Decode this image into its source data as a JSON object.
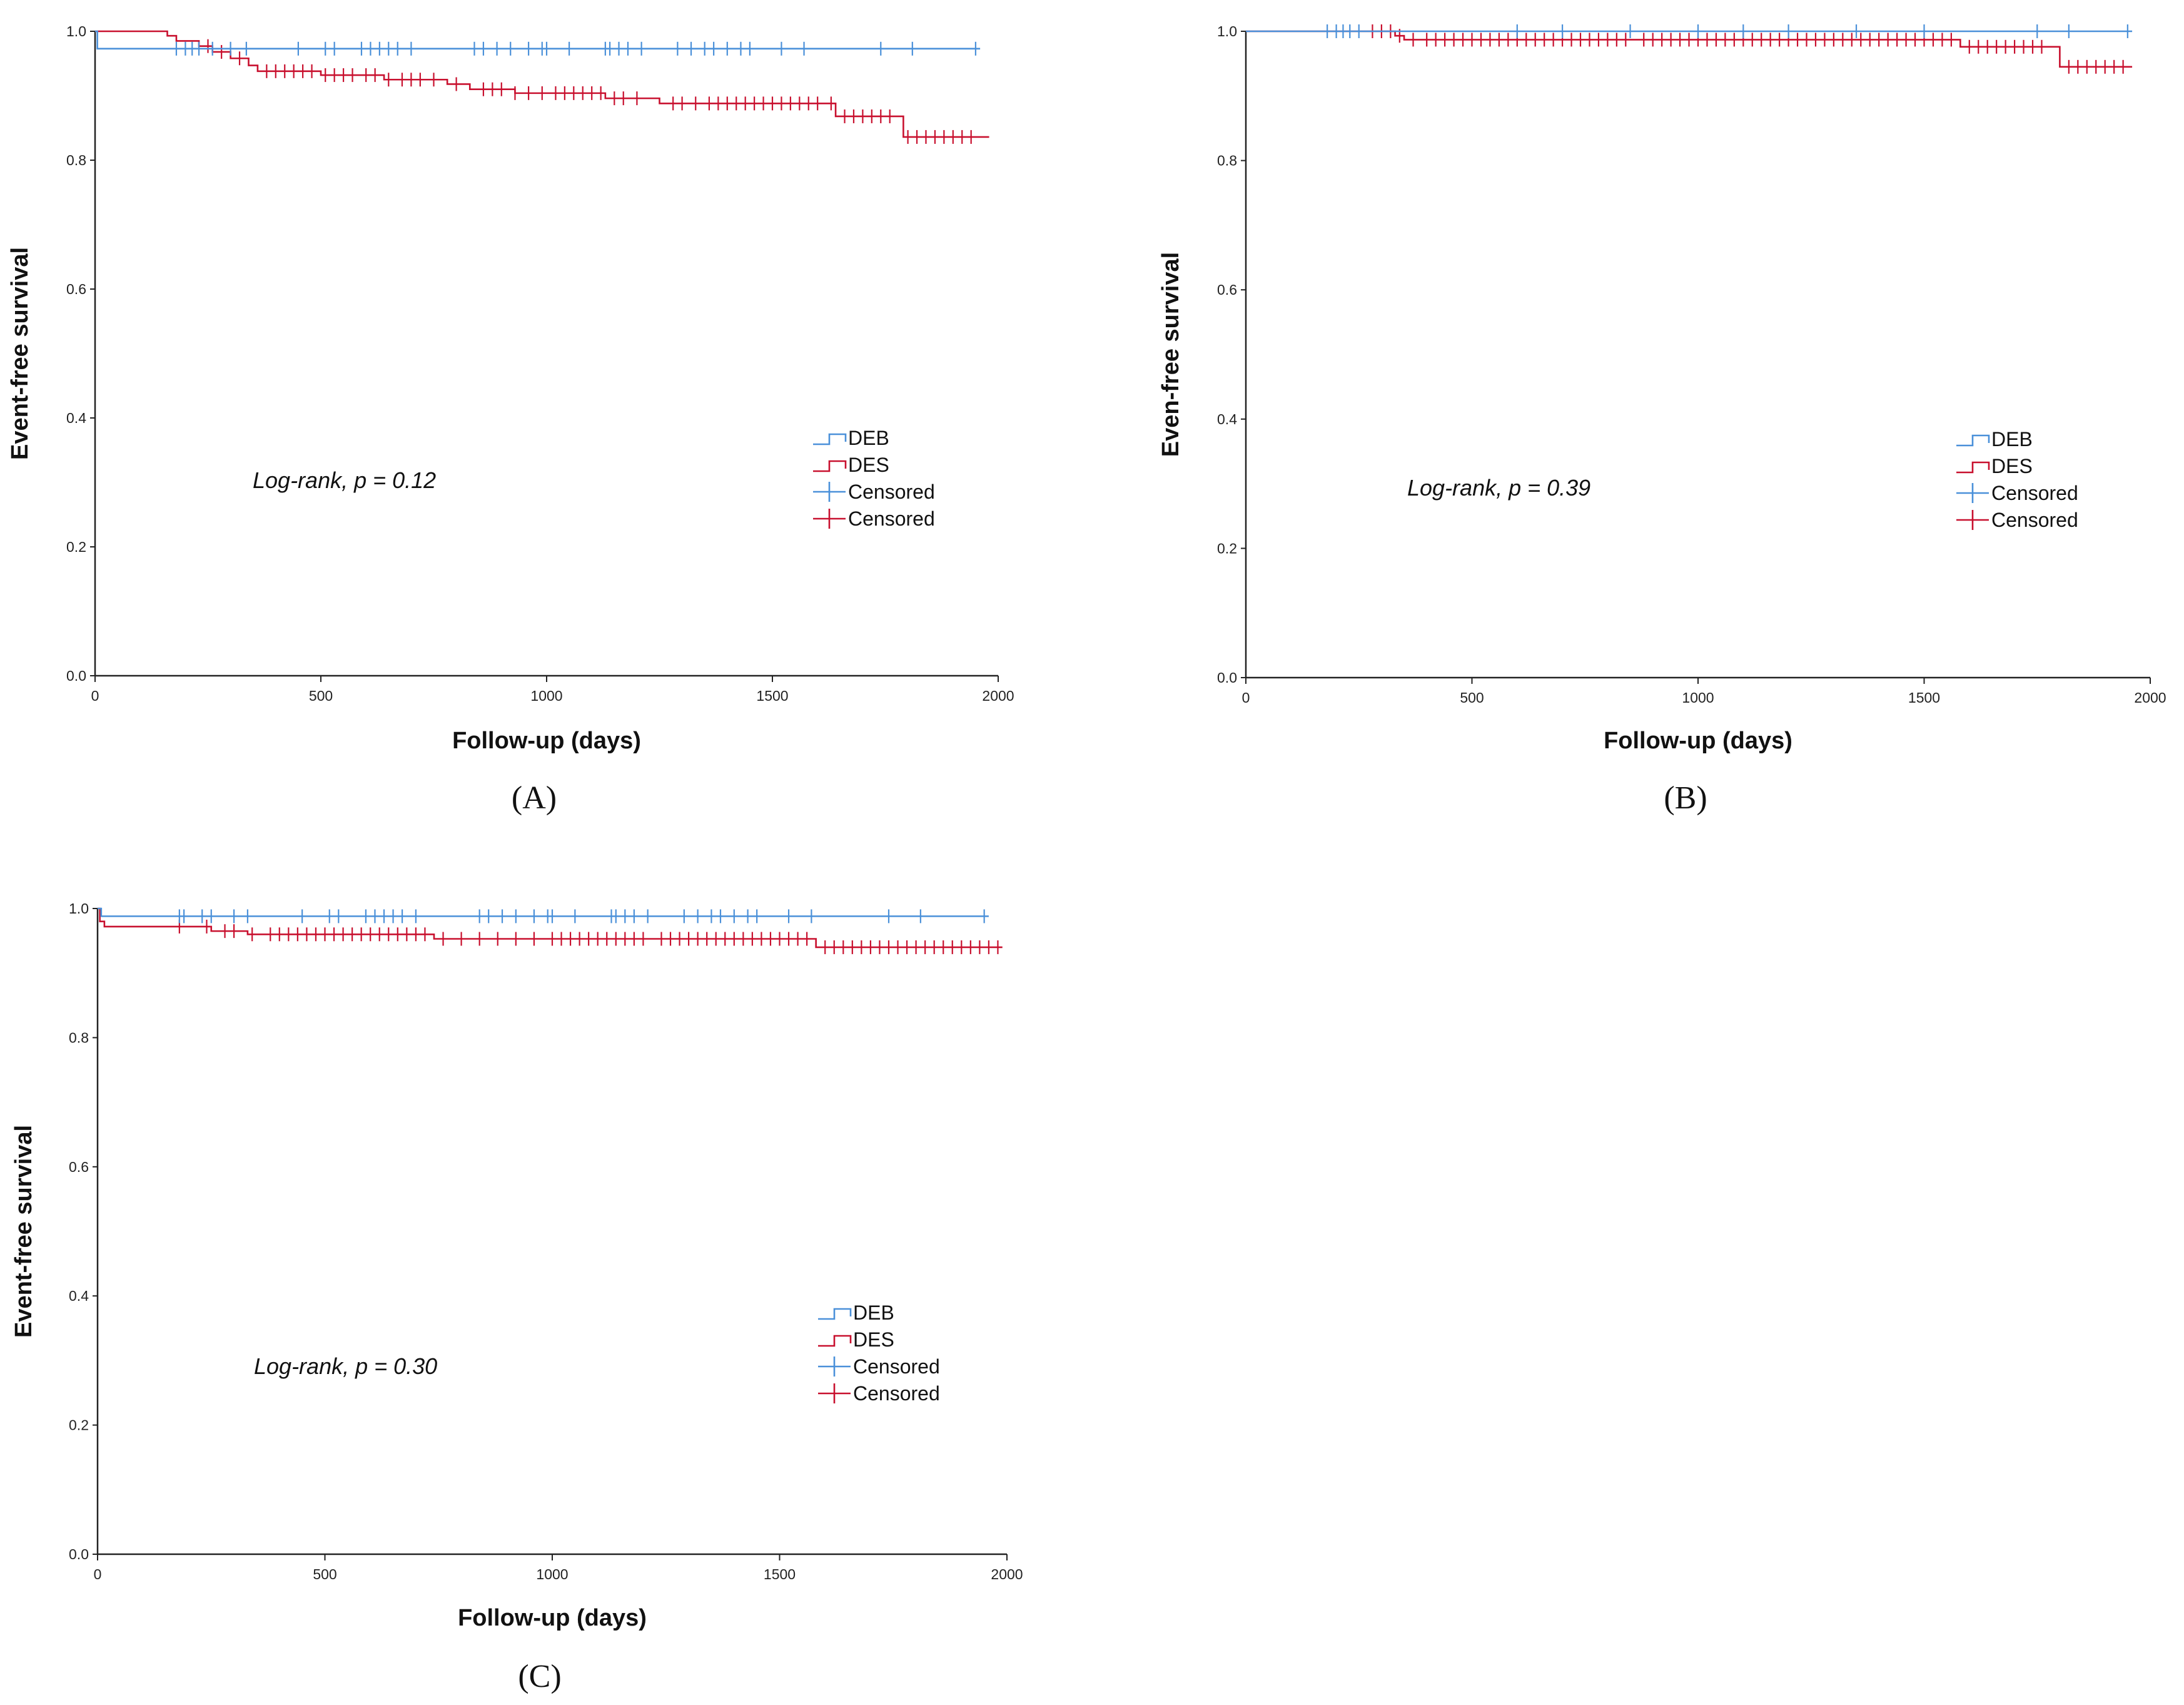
{
  "colors": {
    "deb": "#4a90d9",
    "des": "#c8102e",
    "axis": "#222222"
  },
  "chart_data": [
    {
      "type": "line",
      "panel_label": "(A)",
      "xlabel": "Follow-up (days)",
      "ylabel": "Event-free survival",
      "xlim": [
        0,
        2000
      ],
      "ylim": [
        0,
        1.0
      ],
      "xticks": [
        "0",
        "500",
        "1000",
        "1500",
        "2000"
      ],
      "yticks": [
        "0.0",
        "0.2",
        "0.4",
        "0.6",
        "0.8",
        "1.0"
      ],
      "annotation": "Log-rank, p = 0.12",
      "legend": [
        "DEB",
        "DES",
        "Censored",
        "Censored"
      ],
      "series": [
        {
          "name": "DEB",
          "steps": [
            [
              0,
              1.0
            ],
            [
              5,
              0.973
            ],
            [
              1960,
              0.973
            ]
          ],
          "censored": [
            180,
            200,
            215,
            230,
            260,
            300,
            335,
            450,
            510,
            530,
            590,
            610,
            630,
            650,
            670,
            700,
            840,
            860,
            890,
            920,
            960,
            990,
            1000,
            1050,
            1130,
            1140,
            1160,
            1180,
            1210,
            1290,
            1320,
            1350,
            1370,
            1400,
            1430,
            1450,
            1520,
            1570,
            1740,
            1810,
            1950
          ]
        },
        {
          "name": "DES",
          "steps": [
            [
              0,
              1.0
            ],
            [
              160,
              0.993
            ],
            [
              180,
              0.985
            ],
            [
              230,
              0.977
            ],
            [
              260,
              0.968
            ],
            [
              300,
              0.958
            ],
            [
              340,
              0.947
            ],
            [
              360,
              0.938
            ],
            [
              500,
              0.932
            ],
            [
              640,
              0.925
            ],
            [
              780,
              0.918
            ],
            [
              830,
              0.91
            ],
            [
              930,
              0.904
            ],
            [
              1130,
              0.896
            ],
            [
              1250,
              0.888
            ],
            [
              1640,
              0.868
            ],
            [
              1790,
              0.836
            ],
            [
              1980,
              0.836
            ]
          ],
          "censored": [
            250,
            280,
            320,
            380,
            400,
            420,
            440,
            460,
            480,
            510,
            530,
            550,
            570,
            600,
            620,
            650,
            680,
            700,
            720,
            750,
            800,
            860,
            880,
            900,
            930,
            960,
            990,
            1020,
            1040,
            1060,
            1080,
            1100,
            1120,
            1150,
            1170,
            1200,
            1280,
            1300,
            1330,
            1360,
            1380,
            1400,
            1420,
            1440,
            1460,
            1480,
            1500,
            1520,
            1540,
            1560,
            1580,
            1600,
            1630,
            1660,
            1680,
            1700,
            1720,
            1740,
            1760,
            1800,
            1820,
            1840,
            1860,
            1880,
            1900,
            1920,
            1940
          ]
        }
      ]
    },
    {
      "type": "line",
      "panel_label": "(B)",
      "xlabel": "Follow-up (days)",
      "ylabel": "Even-free survival",
      "xlim": [
        0,
        2000
      ],
      "ylim": [
        0,
        1.0
      ],
      "xticks": [
        "0",
        "500",
        "1000",
        "1500",
        "2000"
      ],
      "yticks": [
        "0.0",
        "0.2",
        "0.4",
        "0.6",
        "0.8",
        "1.0"
      ],
      "annotation": "Log-rank, p = 0.39",
      "legend": [
        "DEB",
        "DES",
        "Censored",
        "Censored"
      ],
      "series": [
        {
          "name": "DEB",
          "steps": [
            [
              0,
              1.0
            ],
            [
              1960,
              1.0
            ]
          ],
          "censored": [
            180,
            200,
            215,
            230,
            250,
            600,
            700,
            850,
            1000,
            1100,
            1200,
            1350,
            1500,
            1750,
            1820,
            1950
          ]
        },
        {
          "name": "DES",
          "steps": [
            [
              0,
              1.0
            ],
            [
              330,
              0.993
            ],
            [
              350,
              0.987
            ],
            [
              1580,
              0.976
            ],
            [
              1800,
              0.945
            ],
            [
              1960,
              0.945
            ]
          ],
          "censored": [
            280,
            300,
            320,
            340,
            370,
            400,
            420,
            440,
            460,
            480,
            500,
            520,
            540,
            560,
            580,
            600,
            620,
            640,
            660,
            680,
            700,
            720,
            740,
            760,
            780,
            800,
            820,
            840,
            880,
            900,
            920,
            940,
            960,
            980,
            1000,
            1020,
            1040,
            1060,
            1080,
            1100,
            1120,
            1140,
            1160,
            1180,
            1200,
            1220,
            1240,
            1260,
            1280,
            1300,
            1320,
            1340,
            1360,
            1380,
            1400,
            1420,
            1440,
            1460,
            1480,
            1500,
            1520,
            1540,
            1560,
            1600,
            1620,
            1640,
            1660,
            1680,
            1700,
            1720,
            1740,
            1760,
            1820,
            1840,
            1860,
            1880,
            1900,
            1920,
            1940
          ]
        }
      ]
    },
    {
      "type": "line",
      "panel_label": "(C)",
      "xlabel": "Follow-up (days)",
      "ylabel": "Event-free survival",
      "xlim": [
        0,
        2000
      ],
      "ylim": [
        0,
        1.0
      ],
      "xticks": [
        "0",
        "500",
        "1000",
        "1500",
        "2000"
      ],
      "yticks": [
        "0.0",
        "0.2",
        "0.4",
        "0.6",
        "0.8",
        "1.0"
      ],
      "annotation": "Log-rank, p = 0.30",
      "legend": [
        "DEB",
        "DES",
        "Censored",
        "Censored"
      ],
      "series": [
        {
          "name": "DEB",
          "steps": [
            [
              0,
              1.0
            ],
            [
              8,
              0.988
            ],
            [
              1960,
              0.988
            ]
          ],
          "censored": [
            180,
            190,
            230,
            250,
            300,
            330,
            450,
            510,
            530,
            590,
            610,
            630,
            650,
            670,
            700,
            840,
            860,
            890,
            920,
            960,
            990,
            1000,
            1050,
            1130,
            1140,
            1160,
            1180,
            1210,
            1290,
            1320,
            1350,
            1370,
            1400,
            1430,
            1450,
            1520,
            1570,
            1740,
            1810,
            1950
          ]
        },
        {
          "name": "DES",
          "steps": [
            [
              0,
              1.0
            ],
            [
              5,
              0.98
            ],
            [
              15,
              0.972
            ],
            [
              250,
              0.965
            ],
            [
              330,
              0.96
            ],
            [
              740,
              0.953
            ],
            [
              1580,
              0.94
            ],
            [
              1990,
              0.94
            ]
          ],
          "censored": [
            180,
            240,
            280,
            300,
            340,
            380,
            400,
            420,
            440,
            460,
            480,
            500,
            520,
            540,
            560,
            580,
            600,
            620,
            640,
            660,
            680,
            700,
            720,
            760,
            800,
            840,
            880,
            920,
            960,
            1000,
            1020,
            1040,
            1060,
            1080,
            1100,
            1120,
            1140,
            1160,
            1180,
            1200,
            1240,
            1260,
            1280,
            1300,
            1320,
            1340,
            1360,
            1380,
            1400,
            1420,
            1440,
            1460,
            1480,
            1500,
            1520,
            1540,
            1560,
            1600,
            1620,
            1640,
            1660,
            1680,
            1700,
            1720,
            1740,
            1760,
            1780,
            1800,
            1820,
            1840,
            1860,
            1880,
            1900,
            1920,
            1940,
            1960,
            1980
          ]
        }
      ]
    }
  ]
}
